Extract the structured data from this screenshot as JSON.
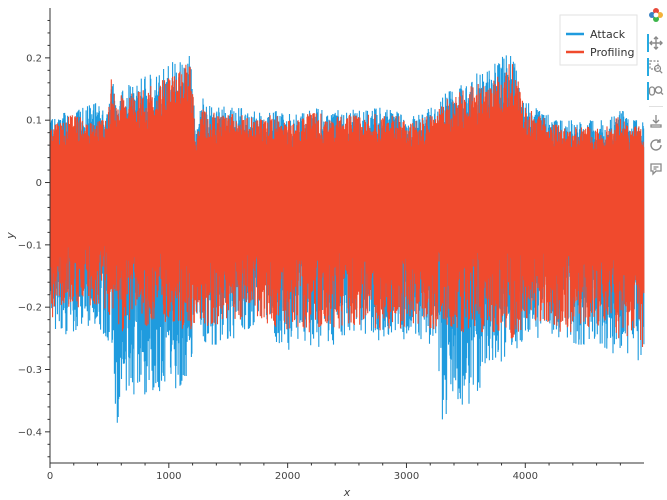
{
  "chart_data": {
    "type": "line",
    "title": "",
    "xlabel": "x",
    "ylabel": "y",
    "xlim": [
      0,
      4999
    ],
    "ylim": [
      -0.45,
      0.28
    ],
    "x_ticks": [
      0,
      1000,
      2000,
      3000,
      4000
    ],
    "x_tick_labels": [
      "0",
      "1000",
      "2000",
      "3000",
      "4000"
    ],
    "y_ticks": [
      0.2,
      0.1,
      0,
      -0.1,
      -0.2,
      -0.3,
      -0.4
    ],
    "y_tick_labels": [
      "0.2",
      "0.1",
      "0",
      "−0.1",
      "−0.2",
      "−0.3",
      "−0.4"
    ],
    "grid": false,
    "legend_position": "top-right",
    "segments_x": [
      0,
      100,
      200,
      300,
      400,
      480,
      520,
      560,
      600,
      700,
      800,
      900,
      1000,
      1100,
      1150,
      1180,
      1230,
      1280,
      1300,
      1400,
      1500,
      1600,
      1700,
      1800,
      1900,
      2000,
      2100,
      2200,
      2300,
      2400,
      2500,
      2600,
      2700,
      2800,
      2900,
      3000,
      3100,
      3200,
      3260,
      3300,
      3400,
      3500,
      3600,
      3700,
      3800,
      3850,
      3900,
      4000,
      4100,
      4200,
      4300,
      4400,
      4500,
      4600,
      4700,
      4800,
      4900,
      4999
    ],
    "series": [
      {
        "name": "Attack",
        "color": "#1f9bde",
        "upper": [
          0.1,
          0.11,
          0.12,
          0.125,
          0.13,
          0.11,
          0.185,
          0.12,
          0.15,
          0.16,
          0.17,
          0.18,
          0.19,
          0.2,
          0.21,
          0.21,
          0.08,
          0.14,
          0.13,
          0.125,
          0.12,
          0.12,
          0.115,
          0.11,
          0.12,
          0.11,
          0.11,
          0.12,
          0.12,
          0.115,
          0.12,
          0.115,
          0.12,
          0.12,
          0.12,
          0.11,
          0.11,
          0.12,
          0.12,
          0.14,
          0.15,
          0.16,
          0.18,
          0.185,
          0.2,
          0.21,
          0.2,
          0.13,
          0.12,
          0.11,
          0.1,
          0.1,
          0.1,
          0.1,
          0.1,
          0.12,
          0.1,
          0.1
        ],
        "lower": [
          -0.24,
          -0.25,
          -0.24,
          -0.23,
          -0.23,
          -0.25,
          -0.27,
          -0.39,
          -0.36,
          -0.34,
          -0.34,
          -0.34,
          -0.33,
          -0.33,
          -0.31,
          -0.29,
          -0.24,
          -0.26,
          -0.26,
          -0.26,
          -0.25,
          -0.25,
          -0.24,
          -0.24,
          -0.26,
          -0.27,
          -0.26,
          -0.27,
          -0.26,
          -0.26,
          -0.25,
          -0.25,
          -0.25,
          -0.26,
          -0.26,
          -0.25,
          -0.25,
          -0.26,
          -0.26,
          -0.4,
          -0.38,
          -0.36,
          -0.34,
          -0.32,
          -0.29,
          -0.28,
          -0.28,
          -0.26,
          -0.25,
          -0.24,
          -0.25,
          -0.26,
          -0.26,
          -0.26,
          -0.27,
          -0.28,
          -0.27,
          -0.3
        ]
      },
      {
        "name": "Profiling",
        "color": "#f04a2d",
        "upper": [
          0.09,
          0.1,
          0.11,
          0.1,
          0.1,
          0.1,
          0.175,
          0.12,
          0.14,
          0.15,
          0.15,
          0.16,
          0.17,
          0.18,
          0.19,
          0.2,
          0.07,
          0.13,
          0.12,
          0.11,
          0.11,
          0.11,
          0.105,
          0.1,
          0.115,
          0.1,
          0.1,
          0.115,
          0.11,
          0.105,
          0.115,
          0.105,
          0.11,
          0.11,
          0.11,
          0.1,
          0.1,
          0.11,
          0.11,
          0.13,
          0.14,
          0.15,
          0.16,
          0.17,
          0.18,
          0.19,
          0.19,
          0.12,
          0.11,
          0.1,
          0.09,
          0.09,
          0.09,
          0.09,
          0.09,
          0.11,
          0.09,
          0.09
        ],
        "lower": [
          -0.22,
          -0.21,
          -0.2,
          -0.2,
          -0.2,
          -0.21,
          -0.25,
          -0.23,
          -0.24,
          -0.24,
          -0.23,
          -0.23,
          -0.23,
          -0.24,
          -0.23,
          -0.24,
          -0.22,
          -0.22,
          -0.23,
          -0.23,
          -0.22,
          -0.22,
          -0.21,
          -0.22,
          -0.24,
          -0.24,
          -0.23,
          -0.25,
          -0.24,
          -0.24,
          -0.23,
          -0.23,
          -0.23,
          -0.24,
          -0.24,
          -0.23,
          -0.23,
          -0.24,
          -0.24,
          -0.23,
          -0.24,
          -0.24,
          -0.24,
          -0.24,
          -0.24,
          -0.25,
          -0.25,
          -0.23,
          -0.22,
          -0.23,
          -0.24,
          -0.24,
          -0.24,
          -0.24,
          -0.25,
          -0.25,
          -0.25,
          -0.27
        ]
      }
    ]
  },
  "toolbar": {
    "items": [
      {
        "name": "bokeh-logo-icon",
        "title": "Bokeh"
      },
      {
        "name": "pan-icon",
        "title": "Pan"
      },
      {
        "name": "box-zoom-icon",
        "title": "Box Zoom"
      },
      {
        "name": "wheel-zoom-icon",
        "title": "Wheel Zoom"
      },
      {
        "name": "save-icon",
        "title": "Save"
      },
      {
        "name": "reset-icon",
        "title": "Reset"
      },
      {
        "name": "hover-icon",
        "title": "Hover"
      }
    ]
  }
}
